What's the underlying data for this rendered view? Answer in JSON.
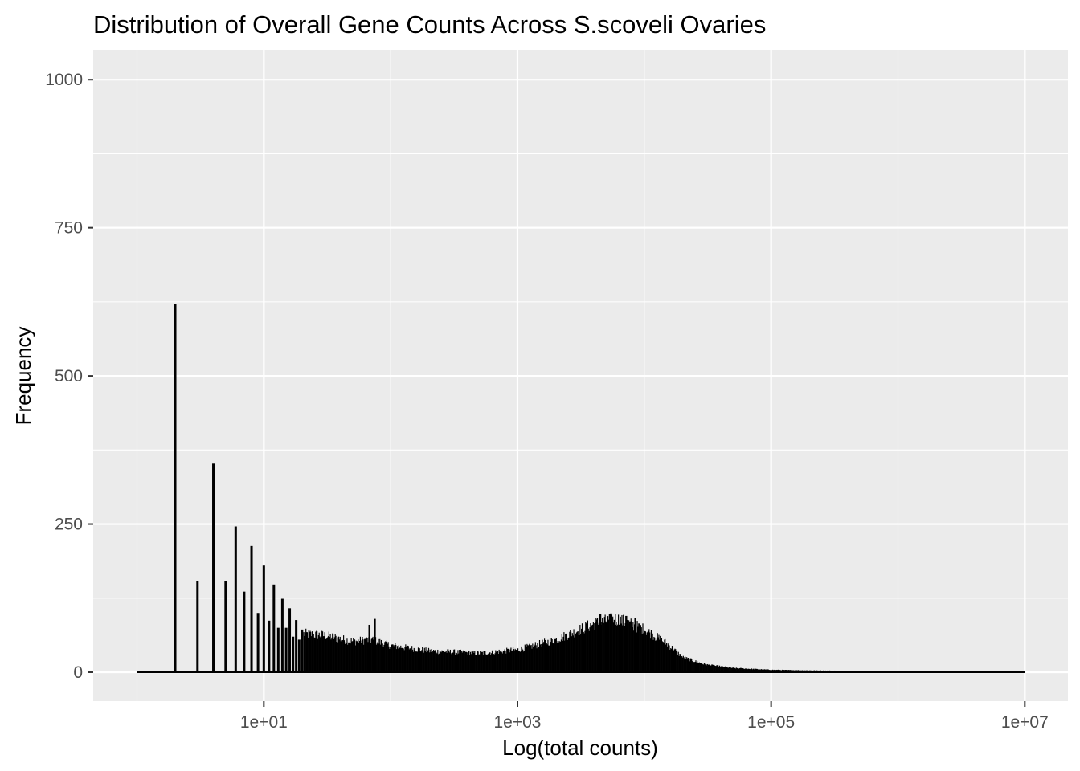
{
  "chart_data": {
    "type": "bar",
    "title": "Distribution of Overall Gene Counts Across S.scoveli Ovaries",
    "xlabel": "Log(total counts)",
    "ylabel": "Frequency",
    "x_scale": "log10",
    "xlim": [
      1,
      10000000
    ],
    "ylim": [
      -45,
      1050
    ],
    "x_ticks": [
      {
        "value": 10,
        "label": "1e+01"
      },
      {
        "value": 1000,
        "label": "1e+03"
      },
      {
        "value": 100000,
        "label": "1e+05"
      },
      {
        "value": 10000000,
        "label": "1e+07"
      }
    ],
    "y_ticks": [
      {
        "value": 0,
        "label": "0"
      },
      {
        "value": 250,
        "label": "250"
      },
      {
        "value": 500,
        "label": "500"
      },
      {
        "value": 750,
        "label": "750"
      },
      {
        "value": 1000,
        "label": "1000"
      }
    ],
    "grid": true,
    "panel_background": "#ebebeb",
    "grid_color": "#ffffff",
    "bar_color": "#000000",
    "discrete_bars": [
      {
        "x": 2,
        "count": 622
      },
      {
        "x": 3,
        "count": 154
      },
      {
        "x": 4,
        "count": 352
      },
      {
        "x": 5,
        "count": 154
      },
      {
        "x": 6,
        "count": 246
      },
      {
        "x": 7,
        "count": 136
      },
      {
        "x": 8,
        "count": 213
      },
      {
        "x": 9,
        "count": 100
      },
      {
        "x": 10,
        "count": 180
      },
      {
        "x": 11,
        "count": 87
      },
      {
        "x": 12,
        "count": 148
      },
      {
        "x": 13,
        "count": 75
      },
      {
        "x": 14,
        "count": 124
      },
      {
        "x": 15,
        "count": 75
      },
      {
        "x": 16,
        "count": 108
      },
      {
        "x": 17,
        "count": 60
      },
      {
        "x": 18,
        "count": 88
      },
      {
        "x": 19,
        "count": 55
      },
      {
        "x": 20,
        "count": 72
      }
    ],
    "continuous_profile": [
      {
        "x": 20,
        "count": 65
      },
      {
        "x": 30,
        "count": 62
      },
      {
        "x": 50,
        "count": 52
      },
      {
        "x": 70,
        "count": 55
      },
      {
        "x": 100,
        "count": 45
      },
      {
        "x": 200,
        "count": 36
      },
      {
        "x": 500,
        "count": 32
      },
      {
        "x": 1000,
        "count": 38
      },
      {
        "x": 2000,
        "count": 55
      },
      {
        "x": 4000,
        "count": 82
      },
      {
        "x": 6000,
        "count": 90
      },
      {
        "x": 10000,
        "count": 72
      },
      {
        "x": 15000,
        "count": 48
      },
      {
        "x": 20000,
        "count": 25
      },
      {
        "x": 30000,
        "count": 13
      },
      {
        "x": 50000,
        "count": 7
      },
      {
        "x": 100000,
        "count": 4
      },
      {
        "x": 200000,
        "count": 3
      },
      {
        "x": 500000,
        "count": 2
      },
      {
        "x": 1000000,
        "count": 1
      },
      {
        "x": 10000000,
        "count": 0
      }
    ],
    "spikes": [
      {
        "x": 75,
        "count": 90
      },
      {
        "x": 68,
        "count": 80
      },
      {
        "x": 4500,
        "count": 98
      },
      {
        "x": 5500,
        "count": 97
      },
      {
        "x": 7200,
        "count": 95
      },
      {
        "x": 8500,
        "count": 92
      }
    ]
  }
}
